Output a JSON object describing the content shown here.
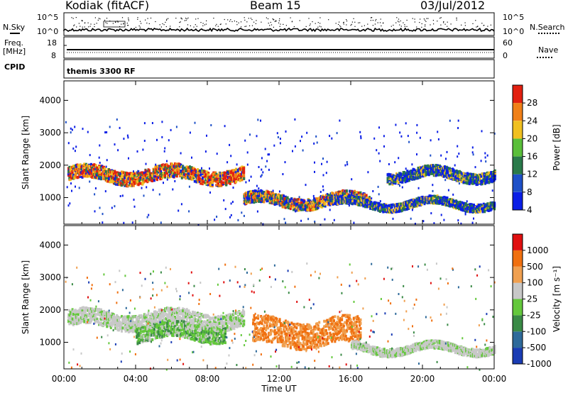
{
  "header": {
    "station": "Kodiak (fitACF)",
    "beam": "Beam 15",
    "date": "03/Jul/2012"
  },
  "summary_panels": {
    "nsky_label": "N.Sky",
    "nsky_ticks": [
      "10^5",
      "10^0"
    ],
    "nsearch_label": "N.Search",
    "nsearch_ticks": [
      "10^5",
      "10^0"
    ],
    "freq_label": "Freq.",
    "freq_unit": "[MHz]",
    "freq_ticks": [
      "18",
      "8"
    ],
    "nave_label": "Nave",
    "nave_ticks": [
      "60",
      "0"
    ],
    "cpid_label": "CPID",
    "cpid_value": "themis 3300 RF"
  },
  "chart_data": [
    {
      "type": "heatmap",
      "name": "power",
      "ylabel": "Slant Range [km]",
      "xlabel": "Time UT",
      "ylim": [
        180,
        4600
      ],
      "yticks": [
        "4000",
        "3000",
        "2000",
        "1000"
      ],
      "xticks": [
        "00:00",
        "04:00",
        "08:00",
        "12:00",
        "16:00",
        "20:00",
        "00:00"
      ],
      "colorbar": {
        "label": "Power [dB]",
        "ticks": [
          "28",
          "24",
          "20",
          "16",
          "12",
          "8",
          "4"
        ],
        "colors": [
          "#0a1ee6",
          "#1e50c8",
          "#2a7a4a",
          "#5abf3a",
          "#f0c020",
          "#f08018",
          "#e22010"
        ]
      },
      "bands": [
        {
          "t_start": 0.2,
          "t_end": 10.0,
          "range_km": 1700,
          "width_km": 260,
          "level": "high"
        },
        {
          "t_start": 10.0,
          "t_end": 17.0,
          "range_km": 900,
          "width_km": 220,
          "level": "mid"
        },
        {
          "t_start": 15.0,
          "t_end": 24.0,
          "range_km": 800,
          "width_km": 150,
          "level": "low"
        },
        {
          "t_start": 18.0,
          "t_end": 24.0,
          "range_km": 1700,
          "width_km": 200,
          "level": "low"
        }
      ]
    },
    {
      "type": "heatmap",
      "name": "velocity",
      "ylabel": "Slant Range [km]",
      "xlabel": "Time UT",
      "ylim": [
        180,
        4600
      ],
      "yticks": [
        "4000",
        "3000",
        "2000",
        "1000"
      ],
      "xticks": [
        "00:00",
        "04:00",
        "08:00",
        "12:00",
        "16:00",
        "20:00",
        "00:00"
      ],
      "colorbar": {
        "label": "Velocity [m s⁻¹]",
        "ticks": [
          "1000",
          "500",
          "100",
          "25",
          "-25",
          "-100",
          "-500",
          "-1000"
        ],
        "colors": [
          "#1a3cb4",
          "#2e6a9a",
          "#3a8a46",
          "#64c83c",
          "#c8c8c8",
          "#f0a050",
          "#f07010",
          "#e01010"
        ]
      },
      "bands": [
        {
          "t_start": 0.2,
          "t_end": 10.0,
          "range_km": 1700,
          "width_km": 300,
          "level": "grey"
        },
        {
          "t_start": 4.0,
          "t_end": 9.0,
          "range_km": 1300,
          "width_km": 300,
          "level": "green"
        },
        {
          "t_start": 10.5,
          "t_end": 16.5,
          "range_km": 1300,
          "width_km": 500,
          "level": "orange"
        },
        {
          "t_start": 16.0,
          "t_end": 24.0,
          "range_km": 800,
          "width_km": 150,
          "level": "grey"
        }
      ]
    }
  ]
}
